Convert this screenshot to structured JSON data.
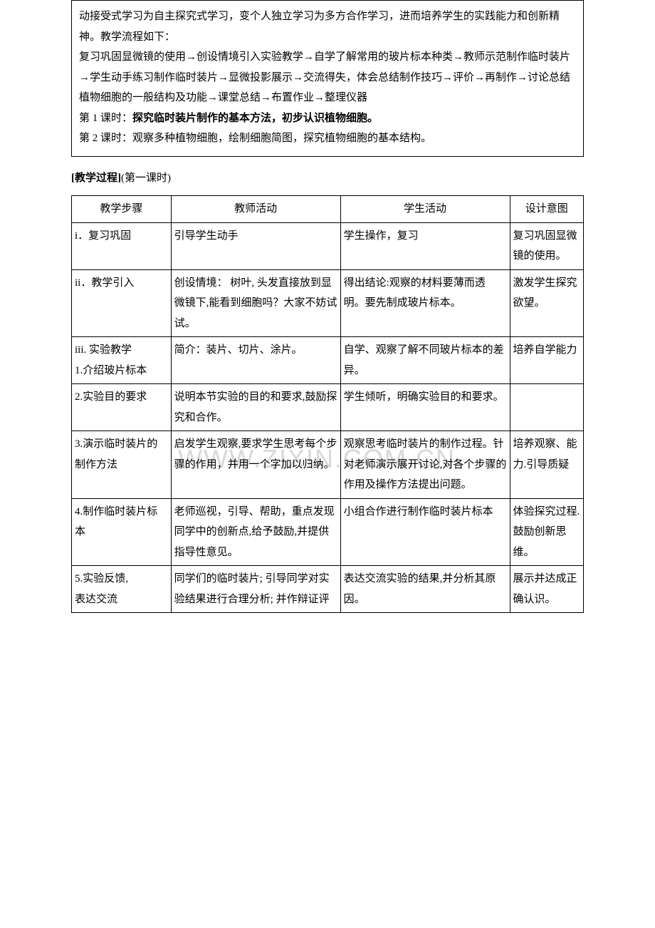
{
  "intro": {
    "p1": "动接受式学习为自主探究式学习，变个人独立学习为多方合作学习，进而培养学生的实践能力和创新精神。教学流程如下：",
    "p2": "复习巩固显微镜的使用→创设情境引入实验教学→自学了解常用的玻片标本种类→教师示范制作临时装片→学生动手练习制作临时装片→显微投影展示→交流得失，体会总结制作技巧→评价→再制作→讨论总结植物细胞的一般结构及功能→课堂总结→布置作业→整理仪器",
    "p3_prefix": "第 1 课时：",
    "p3_bold": "探究临时装片制作的基本方法，初步认识植物细胞。",
    "p4": "第 2 课时：观察多种植物细胞，绘制细胞简图，探究植物细胞的基本结构。"
  },
  "section_label_prefix": "[教学过程]",
  "section_label_suffix": "(第一课时)",
  "table": {
    "headers": [
      "教学步骤",
      "教师活动",
      "学生活动",
      "设计意图"
    ],
    "rows": [
      {
        "c1": "i．复习巩固",
        "c2": "引导学生动手",
        "c3": "学生操作，复习",
        "c4": "复习巩固显微镜的使用。"
      },
      {
        "c1": "ii．教学引入",
        "c2": "创设情境：   树叶, 头发直接放到显微镜下,能看到细胞吗？大家不妨试试。",
        "c3": "得出结论:观察的材料要薄而透明。要先制成玻片标本。",
        "c4": "激发学生探究欲望。"
      },
      {
        "c1": "iii. 实验教学\n1.介绍玻片标本",
        "c2": "简介：装片、切片、涂片。",
        "c3": "自学、观察了解不同玻片标本的差异。",
        "c4": "培养自学能力"
      },
      {
        "c1": "2.实验目的要求",
        "c2": "说明本节实验的目的和要求,鼓励探究和合作。",
        "c3": "学生倾听，明确实验目的和要求。",
        "c4": ""
      },
      {
        "c1": "3.演示临时装片的制作方法",
        "c2": "启发学生观察,要求学生思考每个步骤的作用，并用一个字加以归纳。",
        "c3": "观察思考临时装片的制作过程。针对老师演示展开讨论,对各个步骤的作用及操作方法提出问题。",
        "c4": "培养观察、能力.引导质疑"
      },
      {
        "c1": "4.制作临时装片标本",
        "c2": "老师巡视，引导、帮助，重点发现同学中的创新点,给予鼓励,并提供指导性意见。",
        "c3": "小组合作进行制作临时装片标本",
        "c4": "体验探究过程.鼓励创新思维。"
      },
      {
        "c1": "5.实验反馈,\n表达交流",
        "c2": "同学们的临时装片; 引导同学对实验结果进行合理分析; 并作辩证评",
        "c3": "表达交流实验的结果,并分析其原因。",
        "c4": "展示并达成正确认识。"
      }
    ]
  },
  "colors": {
    "text": "#000000",
    "border": "#000000",
    "background": "#ffffff",
    "watermark": "#d9d9d9"
  },
  "watermark_text": "WWW.ZIXIN.COM.CN"
}
